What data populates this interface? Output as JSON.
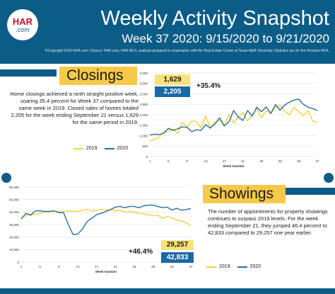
{
  "header": {
    "logo_top": "HAR",
    "logo_bottom": ".com",
    "title": "Weekly Activity Snapshot",
    "subtitle": "Week 37 2020: 9/15/2020 to 9/21/2020",
    "credit": "©Copyright 2020 HAR.com | Source: HAR.com, HAR MLS, analysis prepared in cooperation with the Real Estate Center at Texas A&M University. Statistics are for the Houston MSA."
  },
  "closings": {
    "title": "Closings",
    "text": "Home closings achieved a ninth straight positive week, soaring 35.4 percent for Week 37 compared to the same week in 2019. Closed sales of homes totaled 2,205 for the week ending September 21 versus 1,629 for the same period in 2019.",
    "value_2019": "1,629",
    "value_2020": "2,205",
    "pct": "+35.4%",
    "legend_2019": "2019",
    "legend_2020": "2020"
  },
  "showings": {
    "title": "Showings",
    "text": "The number of appointments for property showings continues to surpass 2019 levels. For the week ending September 21, they jumped 46.4 percent to 42,833 compared to 29,257 one year earlier.",
    "value_2019": "29,257",
    "value_2020": "42,833",
    "pct": "+46.4%",
    "legend_2019": "2019",
    "legend_2020": "2020"
  },
  "colors": {
    "brand": "#0b5d87",
    "accent": "#f7c94a",
    "line_2019": "#f0d23c",
    "line_2020": "#2a6fa3"
  },
  "chart_data": [
    {
      "type": "line",
      "xlabel": "Week Number",
      "ylabel": "",
      "ylim": [
        0,
        4000
      ],
      "yticks": [
        0,
        500,
        1000,
        1500,
        2000,
        2500,
        3000,
        3500,
        4000
      ],
      "ytick_labels": [
        "0",
        "500",
        "1,000",
        "1,500",
        "2,000",
        "2,500",
        "3,000",
        "3,500",
        "4,000"
      ],
      "xticks": [
        1,
        5,
        9,
        13,
        17,
        21,
        25,
        29,
        33,
        37
      ],
      "xlim": [
        1,
        37
      ],
      "grid": true,
      "legend": "bottom",
      "x": [
        1,
        2,
        3,
        4,
        5,
        6,
        7,
        8,
        9,
        10,
        11,
        12,
        13,
        14,
        15,
        16,
        17,
        18,
        19,
        20,
        21,
        22,
        23,
        24,
        25,
        26,
        27,
        28,
        29,
        30,
        31,
        32,
        33,
        34,
        35,
        36,
        37
      ],
      "series": [
        {
          "name": "2019",
          "values": [
            740,
            840,
            920,
            1180,
            1200,
            1330,
            1100,
            1630,
            1420,
            1700,
            1680,
            1380,
            1940,
            1400,
            1650,
            1740,
            1500,
            2000,
            1600,
            1900,
            2100,
            1700,
            2000,
            2300,
            1850,
            2200,
            2050,
            2350,
            2450,
            2150,
            2000,
            2350,
            2150,
            1960,
            2200,
            1700,
            1629
          ]
        },
        {
          "name": "2020",
          "values": [
            1030,
            1070,
            1050,
            1120,
            1350,
            1250,
            1330,
            1420,
            1400,
            1190,
            1280,
            1250,
            1530,
            1360,
            1560,
            1850,
            1460,
            1660,
            2200,
            1890,
            1730,
            2200,
            1940,
            2360,
            2150,
            2370,
            2070,
            2480,
            2220,
            2470,
            2600,
            2700,
            2750,
            2500,
            2370,
            2300,
            2205
          ]
        }
      ]
    },
    {
      "type": "line",
      "xlabel": "Week Number",
      "ylabel": "",
      "ylim": [
        0,
        60000
      ],
      "yticks": [
        0,
        10000,
        20000,
        30000,
        40000,
        50000,
        60000
      ],
      "ytick_labels": [
        "0",
        "10,000",
        "20,000",
        "30,000",
        "40,000",
        "50,000",
        "60,000"
      ],
      "xticks": [
        1,
        5,
        9,
        13,
        17,
        21,
        25,
        29,
        33,
        37
      ],
      "xlim": [
        1,
        37
      ],
      "grid": true,
      "legend": "bottom",
      "x": [
        1,
        2,
        3,
        4,
        5,
        6,
        7,
        8,
        9,
        10,
        11,
        12,
        13,
        14,
        15,
        16,
        17,
        18,
        19,
        20,
        21,
        22,
        23,
        24,
        25,
        26,
        27,
        28,
        29,
        30,
        31,
        32,
        33,
        34,
        35,
        36,
        37
      ],
      "series": [
        {
          "name": "2019",
          "values": [
            35500,
            37000,
            38500,
            38000,
            39000,
            40000,
            40000,
            40500,
            40000,
            40500,
            41000,
            40500,
            40500,
            41500,
            42000,
            41000,
            41500,
            42000,
            41500,
            42000,
            41000,
            41500,
            40000,
            40500,
            40000,
            39000,
            38500,
            38000,
            37000,
            37500,
            35000,
            36500,
            35500,
            33500,
            33000,
            31500,
            29257
          ]
        },
        {
          "name": "2020",
          "values": [
            34500,
            39000,
            37500,
            41000,
            41000,
            40500,
            40500,
            41000,
            39500,
            39500,
            30000,
            22000,
            22500,
            26500,
            32500,
            35000,
            38000,
            39000,
            40500,
            42000,
            44000,
            44500,
            43500,
            44500,
            44500,
            43500,
            45000,
            45500,
            45500,
            44500,
            43500,
            44000,
            41500,
            43000,
            41500,
            42000,
            42833
          ]
        }
      ]
    }
  ]
}
